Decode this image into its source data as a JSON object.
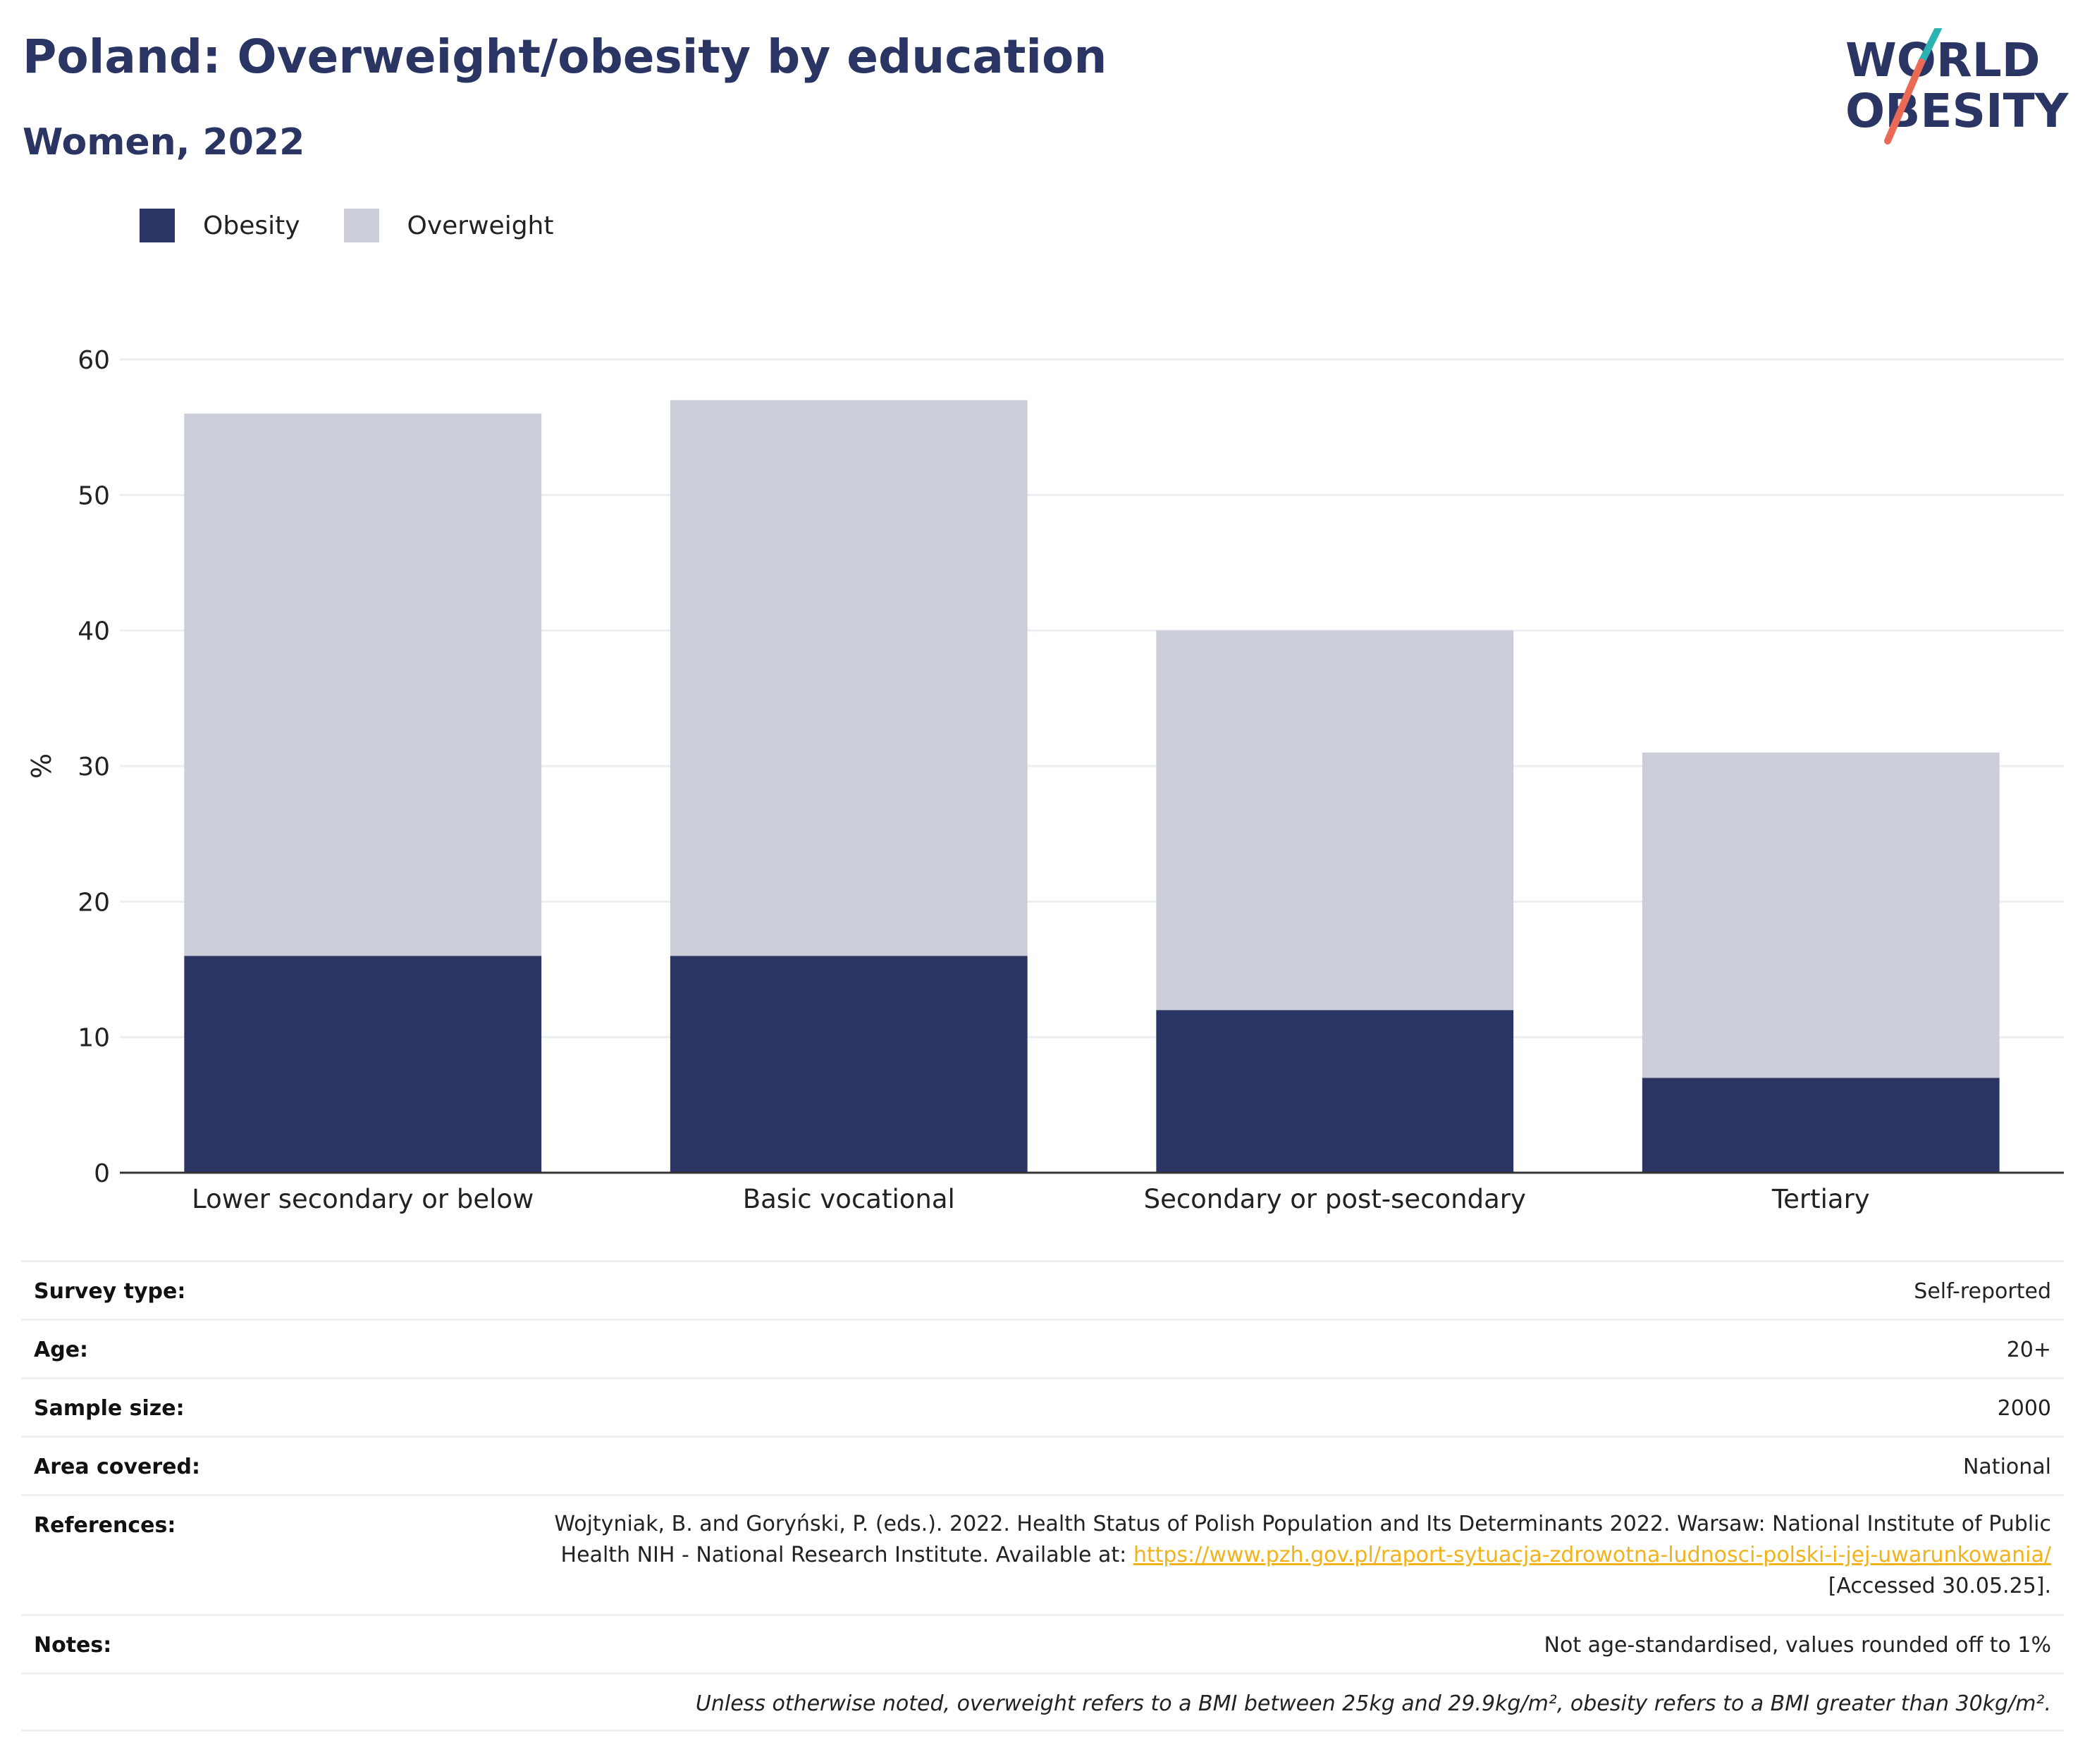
{
  "header": {
    "title": "Poland: Overweight/obesity by education",
    "subtitle": "Women, 2022"
  },
  "logo": {
    "line1": "WORLD",
    "line2": "OBESITY",
    "name": "world-obesity-logo"
  },
  "colors": {
    "obesity": "#2b3563",
    "overweight": "#cbcdd9",
    "title": "#2b3563",
    "link": "#f2b21c",
    "grid": "#eceef2"
  },
  "chart_data": {
    "type": "bar",
    "stacked": true,
    "categories": [
      "Lower secondary or below",
      "Basic vocational",
      "Secondary or post-secondary",
      "Tertiary"
    ],
    "series": [
      {
        "name": "Obesity",
        "values": [
          16,
          16,
          12,
          7
        ]
      },
      {
        "name": "Overweight",
        "values": [
          40,
          41,
          28,
          24
        ]
      }
    ],
    "ylabel": "%",
    "yticks": [
      0,
      10,
      20,
      30,
      40,
      50,
      60
    ],
    "ylim": [
      0,
      60
    ],
    "grid": true,
    "legend": "top-left"
  },
  "meta": {
    "survey_type": {
      "label": "Survey type:",
      "value": "Self-reported"
    },
    "age": {
      "label": "Age:",
      "value": "20+"
    },
    "sample_size": {
      "label": "Sample size:",
      "value": "2000"
    },
    "area": {
      "label": "Area covered:",
      "value": "National"
    },
    "references": {
      "label": "References:",
      "text_before": "Wojtyniak, B. and Goryński, P. (eds.). 2022. Health Status of Polish Population and Its Determinants 2022. Warsaw: National Institute of Public Health NIH - National Research Institute. Available at: ",
      "link": "https://www.pzh.gov.pl/raport-sytuacja-zdrowotna-ludnosci-polski-i-jej-uwarunkowania/",
      "text_after": " [Accessed 30.05.25]."
    },
    "notes": {
      "label": "Notes:",
      "value": "Not age-standardised, values rounded off to 1%"
    },
    "definition": "Unless otherwise noted, overweight refers to a BMI between 25kg and 29.9kg/m², obesity refers to a BMI greater than 30kg/m²."
  }
}
